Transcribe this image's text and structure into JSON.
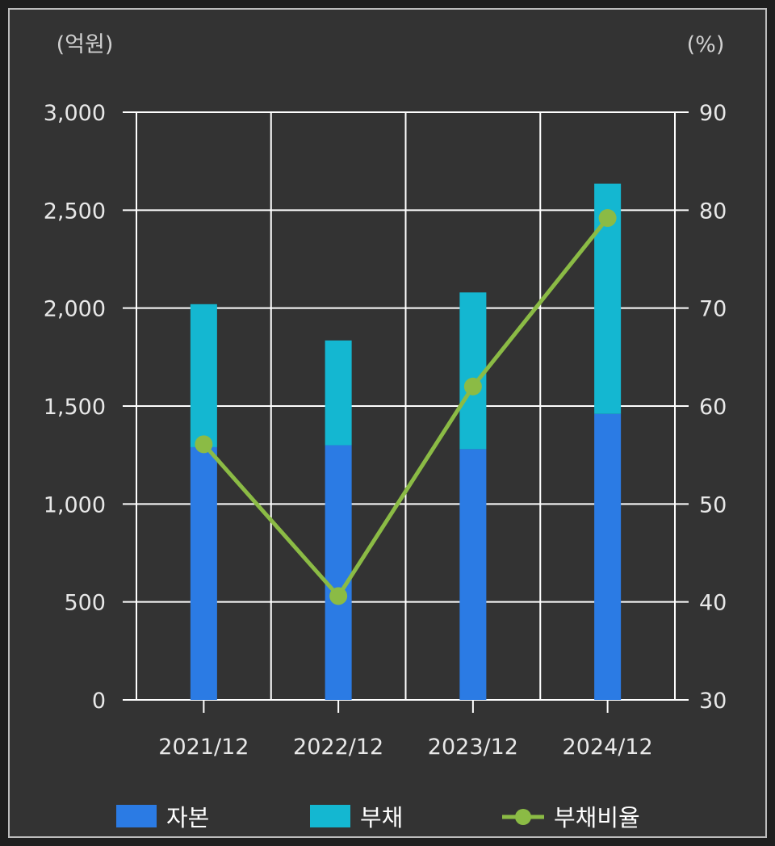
{
  "chart_data": {
    "type": "bar",
    "stacked": true,
    "categories": [
      "2021/12",
      "2022/12",
      "2023/12",
      "2024/12"
    ],
    "series": [
      {
        "name": "자본",
        "type": "bar",
        "axis": "left",
        "color": "#2b7be4",
        "values": [
          1290,
          1300,
          1280,
          1460
        ]
      },
      {
        "name": "부채",
        "type": "bar",
        "axis": "left",
        "color": "#14b7d1",
        "values": [
          730,
          535,
          800,
          1175
        ]
      },
      {
        "name": "부채비율",
        "type": "line",
        "axis": "right",
        "color": "#8bbb45",
        "values": [
          56.1,
          40.6,
          62.0,
          79.2
        ]
      }
    ],
    "y_left": {
      "unit": "(억원)",
      "range": [
        0,
        3000
      ],
      "ticks": [
        0,
        500,
        1000,
        1500,
        2000,
        2500,
        3000
      ],
      "tick_labels": [
        "0",
        "500",
        "1,000",
        "1,500",
        "2,000",
        "2,500",
        "3,000"
      ]
    },
    "y_right": {
      "unit": "(%)",
      "range": [
        30,
        90
      ],
      "ticks": [
        30,
        40,
        50,
        60,
        70,
        80,
        90
      ],
      "tick_labels": [
        "30",
        "40",
        "50",
        "60",
        "70",
        "80",
        "90"
      ]
    },
    "grid": true,
    "legend": "bottom",
    "colors": {
      "background": "#333333",
      "grid": "#ffffff",
      "text": "#e8e8e8"
    }
  }
}
